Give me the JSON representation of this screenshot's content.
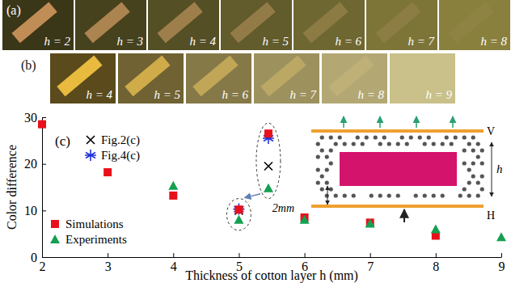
{
  "panels": [
    {
      "label": "(a)",
      "captions": [
        "h = 2",
        "h = 3",
        "h = 4",
        "h = 5",
        "h = 6",
        "h = 7",
        "h = 8"
      ]
    },
    {
      "label": "(b)",
      "captions": [
        "h = 4",
        "h = 5",
        "h = 6",
        "h = 7",
        "h = 8",
        "h = 9"
      ]
    }
  ],
  "chart_data": {
    "type": "scatter",
    "panel_label": "(c)",
    "xlabel": "Thickness of cotton layer h (mm)",
    "ylabel": "Color difference",
    "xlim": [
      2,
      9
    ],
    "ylim": [
      0,
      30
    ],
    "xticks": [
      2,
      3,
      4,
      5,
      6,
      7,
      8,
      9
    ],
    "yticks": [
      0,
      10,
      20,
      30
    ],
    "series": [
      {
        "name": "Fig.2(c)",
        "color": "#000000",
        "marker": "x",
        "x": [
          5,
          5.45
        ],
        "values": [
          10.0,
          19.5
        ]
      },
      {
        "name": "Fig.4(c)",
        "color": "#2233dd",
        "marker": "asterisk",
        "x": [
          5,
          5.45
        ],
        "values": [
          10.3,
          25.5
        ]
      },
      {
        "name": "Simulations",
        "color": "#e8101a",
        "marker": "square",
        "x": [
          2,
          3,
          4,
          5,
          5.45,
          6,
          7,
          8
        ],
        "values": [
          28.5,
          18.2,
          13.2,
          10.2,
          26.5,
          8.5,
          7.4,
          4.6
        ]
      },
      {
        "name": "Experiments",
        "color": "#14a050",
        "marker": "triangle",
        "x": [
          4,
          5,
          5.45,
          6,
          7,
          8,
          9
        ],
        "values": [
          15.3,
          8.0,
          14.8,
          8.0,
          7.2,
          6.0,
          4.3
        ]
      }
    ],
    "inset": {
      "top_label": "V",
      "bottom_label": "H",
      "thickness_label": "h",
      "gap_label": "2mm"
    }
  }
}
